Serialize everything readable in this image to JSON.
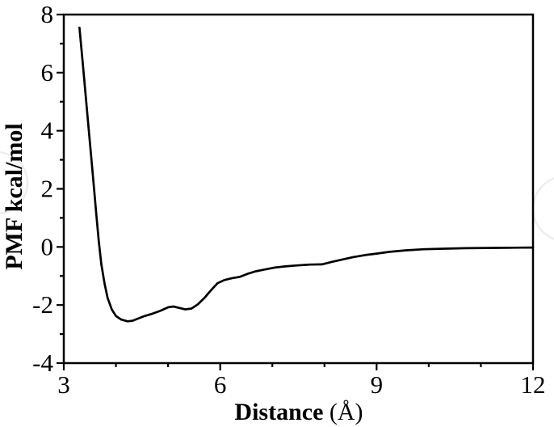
{
  "figure": {
    "background": "#ffffff",
    "frame_color": "#000000",
    "curve_color": "#000000",
    "watermark_color": "#ededed"
  },
  "chart_data": {
    "type": "line",
    "title": "",
    "xlabel": "Distance (Å)",
    "xlabel_parts": {
      "name": "Distance",
      "unit": " (Å)"
    },
    "ylabel": "PMF kcal/mol",
    "xlim": [
      3,
      12
    ],
    "ylim": [
      -4,
      8
    ],
    "grid": false,
    "legend_position": "none",
    "x_major_ticks": [
      3,
      6,
      9,
      12
    ],
    "x_tick_labels": [
      "3",
      "6",
      "9",
      "12"
    ],
    "x_minor_ticks": [
      4,
      5,
      7,
      8,
      10,
      11
    ],
    "y_major_ticks": [
      8,
      6,
      4,
      2,
      0,
      -2,
      -4
    ],
    "y_tick_labels": [
      "8",
      "6",
      "4",
      "2",
      "0",
      "-2",
      "-4"
    ],
    "y_minor_ticks": [
      7,
      5,
      3,
      1,
      -1,
      -3
    ],
    "series": [
      {
        "name": "PMF",
        "color": "#000000",
        "points": [
          [
            3.3,
            7.55
          ],
          [
            3.34,
            6.8
          ],
          [
            3.39,
            5.8
          ],
          [
            3.44,
            4.8
          ],
          [
            3.5,
            3.6
          ],
          [
            3.56,
            2.4
          ],
          [
            3.62,
            1.2
          ],
          [
            3.67,
            0.2
          ],
          [
            3.72,
            -0.6
          ],
          [
            3.78,
            -1.25
          ],
          [
            3.84,
            -1.75
          ],
          [
            3.92,
            -2.15
          ],
          [
            4.0,
            -2.38
          ],
          [
            4.1,
            -2.5
          ],
          [
            4.22,
            -2.56
          ],
          [
            4.32,
            -2.54
          ],
          [
            4.42,
            -2.47
          ],
          [
            4.55,
            -2.38
          ],
          [
            4.7,
            -2.3
          ],
          [
            4.85,
            -2.2
          ],
          [
            5.0,
            -2.08
          ],
          [
            5.1,
            -2.05
          ],
          [
            5.22,
            -2.1
          ],
          [
            5.33,
            -2.15
          ],
          [
            5.45,
            -2.12
          ],
          [
            5.57,
            -1.98
          ],
          [
            5.7,
            -1.75
          ],
          [
            5.82,
            -1.5
          ],
          [
            5.95,
            -1.25
          ],
          [
            6.08,
            -1.14
          ],
          [
            6.22,
            -1.08
          ],
          [
            6.38,
            -1.03
          ],
          [
            6.52,
            -0.93
          ],
          [
            6.68,
            -0.84
          ],
          [
            6.85,
            -0.78
          ],
          [
            7.05,
            -0.71
          ],
          [
            7.25,
            -0.67
          ],
          [
            7.45,
            -0.64
          ],
          [
            7.7,
            -0.61
          ],
          [
            7.95,
            -0.6
          ],
          [
            8.15,
            -0.51
          ],
          [
            8.35,
            -0.43
          ],
          [
            8.55,
            -0.35
          ],
          [
            8.78,
            -0.28
          ],
          [
            9.0,
            -0.23
          ],
          [
            9.25,
            -0.17
          ],
          [
            9.55,
            -0.12
          ],
          [
            9.9,
            -0.08
          ],
          [
            10.3,
            -0.06
          ],
          [
            10.7,
            -0.045
          ],
          [
            11.1,
            -0.035
          ],
          [
            11.5,
            -0.03
          ],
          [
            11.8,
            -0.025
          ],
          [
            12.0,
            -0.02
          ]
        ]
      }
    ]
  }
}
